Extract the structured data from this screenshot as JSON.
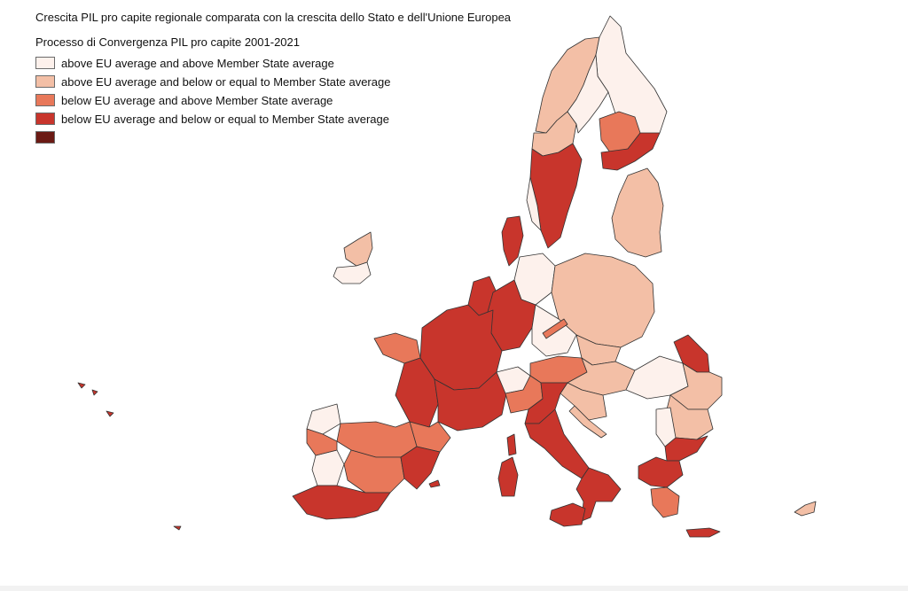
{
  "map": {
    "title": "Crescita PIL pro capite regionale comparata con la crescita dello Stato e dell'Unione Europea",
    "subtitle": "Processo di Convergenza PIL pro capite 2001-2021"
  },
  "legend": {
    "items": [
      {
        "label": "above EU average and above Member State average",
        "color": "#fdf1ec"
      },
      {
        "label": "above EU average and below or equal to Member State average",
        "color": "#f3bfa6"
      },
      {
        "label": "below EU average and above Member State average",
        "color": "#e8785a"
      },
      {
        "label": "below EU average and below or equal to Member State average",
        "color": "#c8352c"
      },
      {
        "label": "",
        "color": "#6b1a14"
      }
    ]
  }
}
